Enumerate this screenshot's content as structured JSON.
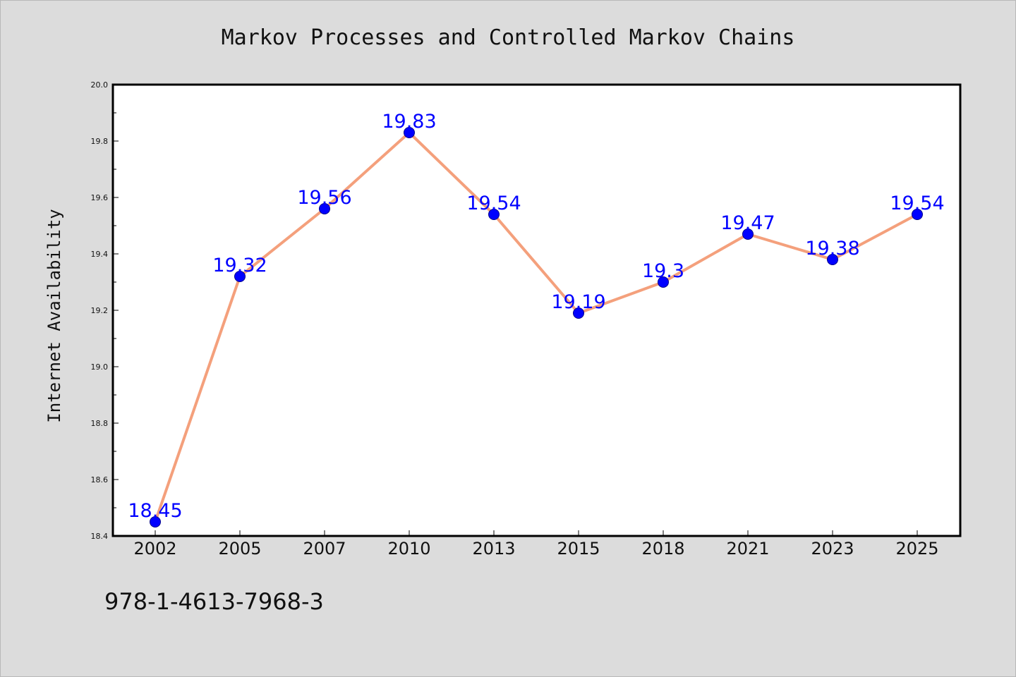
{
  "chart_data": {
    "type": "line",
    "title": "Markov Processes and Controlled Markov Chains",
    "xlabel": "",
    "ylabel": "Internet Availability",
    "categories": [
      "2002",
      "2005",
      "2007",
      "2010",
      "2013",
      "2015",
      "2018",
      "2021",
      "2023",
      "2025"
    ],
    "values": [
      18.45,
      19.32,
      19.56,
      19.83,
      19.54,
      19.19,
      19.3,
      19.47,
      19.38,
      19.54
    ],
    "data_labels": [
      "18.45",
      "19.32",
      "19.56",
      "19.83",
      "19.54",
      "19.19",
      "19.3",
      "19.47",
      "19.38",
      "19.54"
    ],
    "ylim": [
      18.4,
      20.0
    ],
    "yticks": [
      "18.4",
      "18.6",
      "18.8",
      "19.0",
      "19.2",
      "19.4",
      "19.6",
      "19.8",
      "20.0"
    ],
    "grid": false,
    "legend": "none",
    "colors": {
      "line": "#f4a07c",
      "marker": "#0000ff",
      "marker_edge": "#00008b",
      "data_label": "#0000ff",
      "background": "#dcdcdc",
      "plot_background": "#ffffff"
    }
  },
  "footer": {
    "isbn": "978-1-4613-7968-3"
  }
}
